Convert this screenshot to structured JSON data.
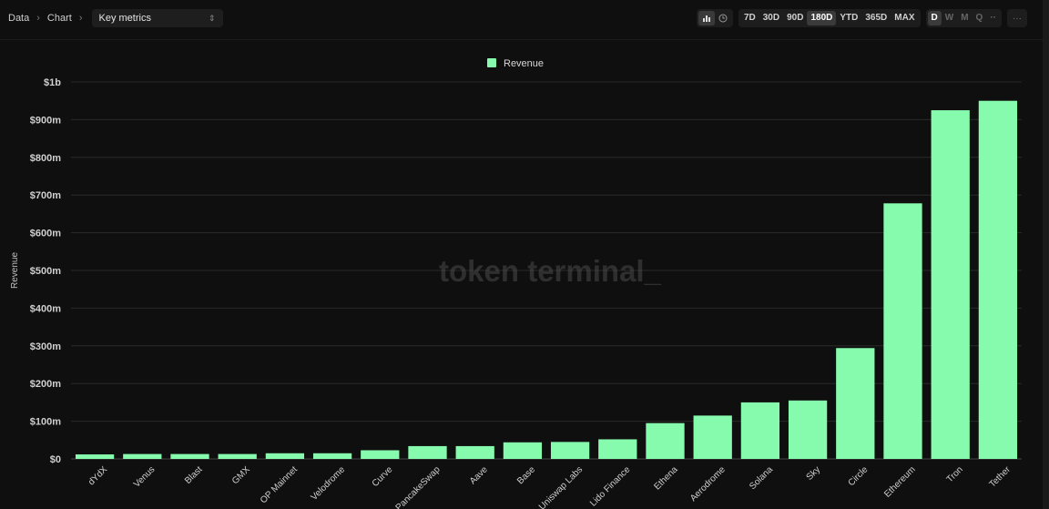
{
  "breadcrumb": {
    "items": [
      "Data",
      "Chart"
    ],
    "separator": "›"
  },
  "metric_select": {
    "value": "Key metrics"
  },
  "controls": {
    "chart_type_icons": [
      "bar-chart-icon",
      "clock-icon"
    ],
    "ranges": [
      "7D",
      "30D",
      "90D",
      "180D",
      "YTD",
      "365D",
      "MAX"
    ],
    "active_range": "180D",
    "granularity": [
      "D",
      "W",
      "M",
      "Q"
    ],
    "active_granularity": "D",
    "more_label": "···"
  },
  "watermark": "token terminal_",
  "colors": {
    "accent": "#86fbad",
    "background": "#0f0f0f",
    "grid": "#2a2a2a"
  },
  "chart_data": {
    "type": "bar",
    "ylabel": "Revenue",
    "legend": {
      "position": "top",
      "entries": [
        "Revenue"
      ]
    },
    "grid": true,
    "ylim": [
      0,
      1000
    ],
    "yticks": [
      {
        "value": 0,
        "label": "$0"
      },
      {
        "value": 100,
        "label": "$100m"
      },
      {
        "value": 200,
        "label": "$200m"
      },
      {
        "value": 300,
        "label": "$300m"
      },
      {
        "value": 400,
        "label": "$400m"
      },
      {
        "value": 500,
        "label": "$500m"
      },
      {
        "value": 600,
        "label": "$600m"
      },
      {
        "value": 700,
        "label": "$700m"
      },
      {
        "value": 800,
        "label": "$800m"
      },
      {
        "value": 900,
        "label": "$900m"
      },
      {
        "value": 1000,
        "label": "$1b"
      }
    ],
    "categories": [
      "dYdX",
      "Venus",
      "Blast",
      "GMX",
      "OP Mainnet",
      "Velodrome",
      "Curve",
      "PancakeSwap",
      "Aave",
      "Base",
      "Uniswap Labs",
      "Lido Finance",
      "Ethena",
      "Aerodrome",
      "Solana",
      "Sky",
      "Circle",
      "Ethereum",
      "Tron",
      "Tether"
    ],
    "series": [
      {
        "name": "Revenue",
        "values": [
          12,
          13,
          13,
          13,
          15,
          15,
          23,
          34,
          34,
          44,
          45,
          52,
          95,
          115,
          150,
          155,
          294,
          678,
          925,
          950
        ]
      }
    ]
  }
}
